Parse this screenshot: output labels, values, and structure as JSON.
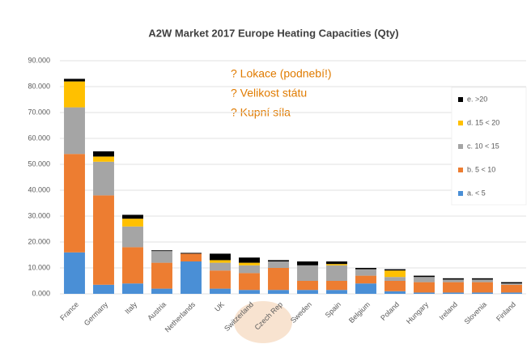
{
  "chart_data": {
    "type": "stacked_bar",
    "title": "A2W Market 2017 Europe Heating Capacities (Qty)",
    "annotations": [
      "? Lokace (podnebí!)",
      "? Velikost státu",
      "? Kupní síla"
    ],
    "categories": [
      "France",
      "Germany",
      "Italy",
      "Austria",
      "Netherlands",
      "UK",
      "Switzerland",
      "Czech Rep",
      "Sweden",
      "Spain",
      "Belgium",
      "Poland",
      "Hungary",
      "Ireland",
      "Slovenia",
      "Finland"
    ],
    "series": [
      {
        "name": "a. < 5",
        "color": "#4a8fd6",
        "values": [
          16000,
          3500,
          4000,
          2000,
          12500,
          2000,
          1500,
          1500,
          1500,
          1500,
          4000,
          1000,
          500,
          500,
          500,
          500
        ]
      },
      {
        "name": "b. 5 < 10",
        "color": "#ed7d31",
        "values": [
          38000,
          34500,
          14000,
          10000,
          3000,
          7000,
          6500,
          8500,
          3500,
          3500,
          3000,
          4000,
          4000,
          4000,
          4000,
          3000
        ]
      },
      {
        "name": "c. 10 < 15",
        "color": "#a5a5a5",
        "values": [
          18000,
          13000,
          8000,
          4500,
          0,
          3000,
          3000,
          2500,
          6000,
          6000,
          2500,
          1500,
          2000,
          1000,
          1000,
          500
        ]
      },
      {
        "name": "d. 15 < 20",
        "color": "#ffc000",
        "values": [
          10000,
          2000,
          3000,
          0,
          0,
          1000,
          1000,
          0,
          0,
          500,
          0,
          2500,
          0,
          0,
          0,
          0
        ]
      },
      {
        "name": "e. >20",
        "color": "#000000",
        "values": [
          1000,
          2000,
          1500,
          300,
          300,
          2500,
          2000,
          500,
          1500,
          1000,
          500,
          500,
          500,
          500,
          500,
          500
        ]
      }
    ],
    "ylim": [
      0,
      90000
    ],
    "yticks": [
      {
        "value": 0,
        "label": "0.000"
      },
      {
        "value": 10000,
        "label": "10.000"
      },
      {
        "value": 20000,
        "label": "20.000"
      },
      {
        "value": 30000,
        "label": "30.000"
      },
      {
        "value": 40000,
        "label": "40.000"
      },
      {
        "value": 50000,
        "label": "50.000"
      },
      {
        "value": 60000,
        "label": "60.000"
      },
      {
        "value": 70000,
        "label": "70.000"
      },
      {
        "value": 80000,
        "label": "80.000"
      },
      {
        "value": 90000,
        "label": "90.000"
      }
    ],
    "grid": true
  }
}
